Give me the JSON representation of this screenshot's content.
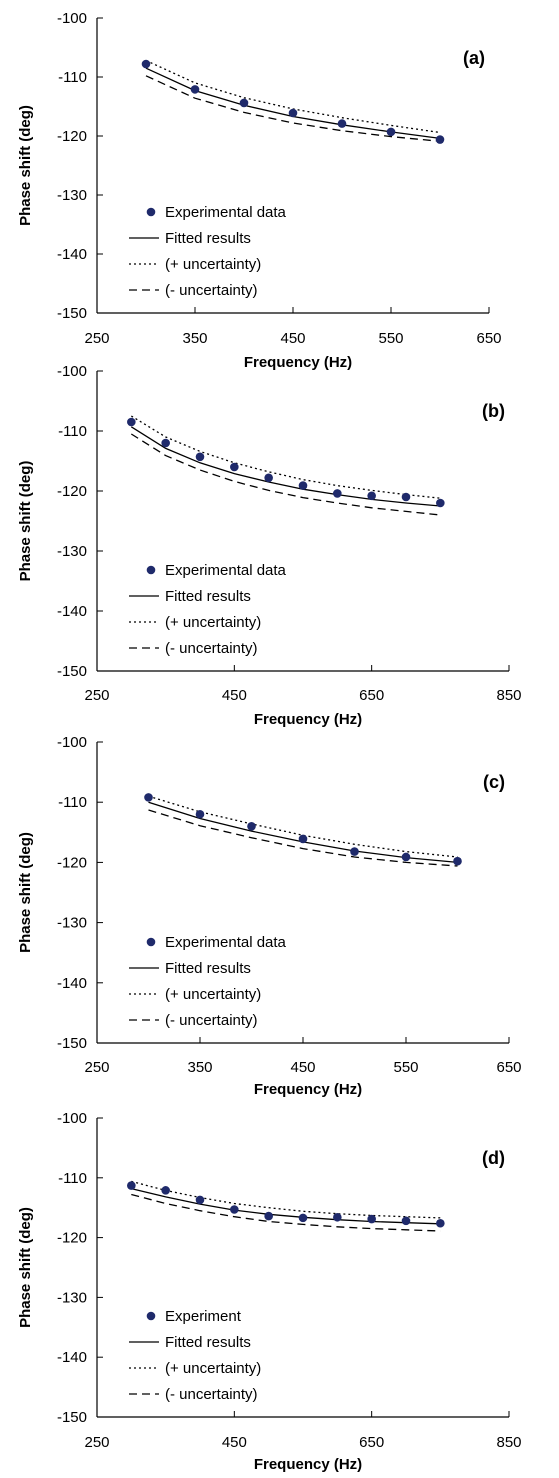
{
  "colors": {
    "point": "#1f2a6b",
    "line": "#000000",
    "axis": "#000000"
  },
  "chart_data": [
    {
      "type": "line",
      "panel_label": "(a)",
      "xlabel": "Frequency (Hz)",
      "ylabel": "Phase shift (deg)",
      "xlim": [
        250,
        650
      ],
      "ylim": [
        -150,
        -100
      ],
      "xticks": [
        250,
        350,
        450,
        550,
        650
      ],
      "yticks": [
        -100,
        -110,
        -120,
        -130,
        -140,
        -150
      ],
      "grid": false,
      "legend": "bottom-left",
      "series": [
        {
          "name": "Experimental data",
          "style": "points",
          "x": [
            300,
            350,
            400,
            450,
            500,
            550,
            600
          ],
          "y": [
            -107.8,
            -112.1,
            -114.4,
            -116.1,
            -117.9,
            -119.3,
            -120.6
          ]
        },
        {
          "name": "Fitted results",
          "style": "solid",
          "x": [
            300,
            350,
            400,
            450,
            500,
            550,
            600
          ],
          "y": [
            -108.5,
            -112.3,
            -114.8,
            -116.7,
            -118.1,
            -119.3,
            -120.4
          ]
        },
        {
          "name": "(+ uncertainty)",
          "style": "dotted",
          "x": [
            300,
            350,
            400,
            450,
            500,
            550,
            600
          ],
          "y": [
            -107.2,
            -111.0,
            -113.5,
            -115.4,
            -116.9,
            -118.2,
            -119.4
          ]
        },
        {
          "name": "(- uncertainty)",
          "style": "dashed",
          "x": [
            300,
            350,
            400,
            450,
            500,
            550,
            600
          ],
          "y": [
            -109.8,
            -113.6,
            -116.0,
            -117.8,
            -119.1,
            -120.1,
            -120.9
          ]
        }
      ]
    },
    {
      "type": "line",
      "panel_label": "(b)",
      "xlabel": "Frequency (Hz)",
      "ylabel": "Phase shift (deg)",
      "xlim": [
        250,
        850
      ],
      "ylim": [
        -150,
        -100
      ],
      "xticks": [
        250,
        450,
        650,
        850
      ],
      "yticks": [
        -100,
        -110,
        -120,
        -130,
        -140,
        -150
      ],
      "grid": false,
      "legend": "bottom-left",
      "series": [
        {
          "name": "Experimental data",
          "style": "points",
          "x": [
            300,
            350,
            400,
            450,
            500,
            550,
            600,
            650,
            700,
            750
          ],
          "y": [
            -108.5,
            -112.0,
            -114.3,
            -116.0,
            -117.8,
            -119.1,
            -120.4,
            -120.8,
            -121.0,
            -122.0
          ]
        },
        {
          "name": "Fitted results",
          "style": "solid",
          "x": [
            300,
            350,
            400,
            450,
            500,
            550,
            600,
            650,
            700,
            750
          ],
          "y": [
            -109.3,
            -112.9,
            -115.3,
            -117.1,
            -118.5,
            -119.7,
            -120.6,
            -121.4,
            -122.0,
            -122.5
          ]
        },
        {
          "name": "(+ uncertainty)",
          "style": "dotted",
          "x": [
            300,
            350,
            400,
            450,
            500,
            550,
            600,
            650,
            700,
            750
          ],
          "y": [
            -107.5,
            -111.0,
            -113.4,
            -115.3,
            -116.8,
            -118.1,
            -119.1,
            -119.9,
            -120.6,
            -121.2
          ]
        },
        {
          "name": "(- uncertainty)",
          "style": "dashed",
          "x": [
            300,
            350,
            400,
            450,
            500,
            550,
            600,
            650,
            700,
            750
          ],
          "y": [
            -110.5,
            -114.1,
            -116.5,
            -118.4,
            -119.9,
            -121.1,
            -122.0,
            -122.8,
            -123.4,
            -124.0
          ]
        }
      ]
    },
    {
      "type": "line",
      "panel_label": "(c)",
      "xlabel": "Frequency (Hz)",
      "ylabel": "Phase shift (deg)",
      "xlim": [
        250,
        650
      ],
      "ylim": [
        -150,
        -100
      ],
      "xticks": [
        250,
        350,
        450,
        550,
        650
      ],
      "yticks": [
        -100,
        -110,
        -120,
        -130,
        -140,
        -150
      ],
      "grid": false,
      "legend": "bottom-left",
      "series": [
        {
          "name": "Experimental data",
          "style": "points",
          "x": [
            300,
            350,
            400,
            450,
            500,
            550,
            600
          ],
          "y": [
            -109.2,
            -112.0,
            -114.0,
            -116.1,
            -118.2,
            -119.1,
            -119.8
          ]
        },
        {
          "name": "Fitted results",
          "style": "solid",
          "x": [
            300,
            350,
            400,
            450,
            500,
            550,
            600
          ],
          "y": [
            -110.0,
            -112.7,
            -114.8,
            -116.6,
            -118.1,
            -119.2,
            -120.0
          ]
        },
        {
          "name": "(+ uncertainty)",
          "style": "dotted",
          "x": [
            300,
            350,
            400,
            450,
            500,
            550,
            600
          ],
          "y": [
            -109.0,
            -111.6,
            -113.6,
            -115.5,
            -117.0,
            -118.2,
            -119.1
          ]
        },
        {
          "name": "(- uncertainty)",
          "style": "dashed",
          "x": [
            300,
            350,
            400,
            450,
            500,
            550,
            600
          ],
          "y": [
            -111.3,
            -113.9,
            -115.9,
            -117.7,
            -119.1,
            -120.0,
            -120.6
          ]
        }
      ]
    },
    {
      "type": "line",
      "panel_label": "(d)",
      "xlabel": "Frequency (Hz)",
      "ylabel": "Phase shift (deg)",
      "xlim": [
        250,
        850
      ],
      "ylim": [
        -150,
        -100
      ],
      "xticks": [
        250,
        450,
        650,
        850
      ],
      "yticks": [
        -100,
        -110,
        -120,
        -130,
        -140,
        -150
      ],
      "grid": false,
      "legend": "bottom-left",
      "series": [
        {
          "name": "Experiment",
          "style": "points",
          "x": [
            300,
            350,
            400,
            450,
            500,
            550,
            600,
            650,
            700,
            750
          ],
          "y": [
            -111.3,
            -112.1,
            -113.7,
            -115.3,
            -116.4,
            -116.7,
            -116.6,
            -116.9,
            -117.2,
            -117.6
          ]
        },
        {
          "name": "Fitted results",
          "style": "solid",
          "x": [
            300,
            350,
            400,
            450,
            500,
            550,
            600,
            650,
            700,
            750
          ],
          "y": [
            -111.8,
            -113.2,
            -114.4,
            -115.4,
            -116.1,
            -116.6,
            -117.0,
            -117.3,
            -117.5,
            -117.7
          ]
        },
        {
          "name": "(+ uncertainty)",
          "style": "dotted",
          "x": [
            300,
            350,
            400,
            450,
            500,
            550,
            600,
            650,
            700,
            750
          ],
          "y": [
            -110.6,
            -112.1,
            -113.3,
            -114.3,
            -115.0,
            -115.6,
            -116.0,
            -116.3,
            -116.5,
            -116.7
          ]
        },
        {
          "name": "(- uncertainty)",
          "style": "dashed",
          "x": [
            300,
            350,
            400,
            450,
            500,
            550,
            600,
            650,
            700,
            750
          ],
          "y": [
            -112.8,
            -114.3,
            -115.5,
            -116.5,
            -117.3,
            -117.8,
            -118.2,
            -118.5,
            -118.7,
            -118.9
          ]
        }
      ]
    }
  ]
}
